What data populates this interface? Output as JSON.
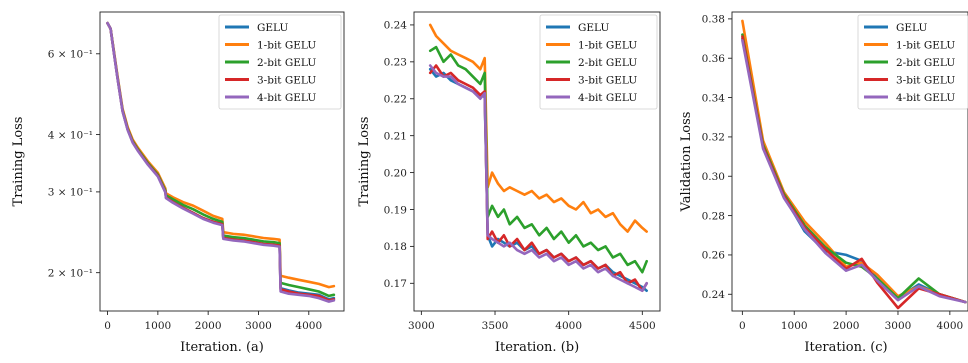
{
  "colors": {
    "GELU": "#1f77b4",
    "1-bit GELU": "#ff7f0e",
    "2-bit GELU": "#2ca02c",
    "3-bit GELU": "#d62728",
    "4-bit GELU": "#9467bd"
  },
  "chart_data": [
    {
      "type": "line",
      "xlabel": "Iteration. (a)",
      "ylabel": "Training Loss",
      "yscale": "log",
      "xlim": [
        -150,
        4700
      ],
      "ylim": [
        0.165,
        0.74
      ],
      "xticks": [
        0,
        1000,
        2000,
        3000,
        4000
      ],
      "xtick_labels": [
        "0",
        "1000",
        "2000",
        "3000",
        "4000"
      ],
      "yticks": [
        0.6,
        0.4,
        0.3,
        0.2
      ],
      "ytick_labels": [
        "6 × 10⁻¹",
        "4 × 10⁻¹",
        "3 × 10⁻¹",
        "2 × 10⁻¹"
      ],
      "legend": "top-right",
      "series": [
        {
          "name": "GELU",
          "x": [
            0,
            60,
            120,
            200,
            300,
            400,
            500,
            600,
            800,
            1000,
            1150,
            1160,
            1300,
            1500,
            1700,
            1900,
            2100,
            2280,
            2300,
            2500,
            2700,
            2900,
            3100,
            3300,
            3420,
            3440,
            3600,
            3800,
            4000,
            4200,
            4400,
            4500
          ],
          "y": [
            0.7,
            0.68,
            0.61,
            0.53,
            0.45,
            0.41,
            0.385,
            0.37,
            0.345,
            0.325,
            0.3,
            0.292,
            0.285,
            0.277,
            0.27,
            0.263,
            0.258,
            0.255,
            0.238,
            0.236,
            0.235,
            0.233,
            0.231,
            0.23,
            0.229,
            0.185,
            0.183,
            0.181,
            0.18,
            0.179,
            0.175,
            0.176
          ]
        },
        {
          "name": "1-bit GELU",
          "x": [
            0,
            60,
            120,
            200,
            300,
            400,
            500,
            600,
            800,
            1000,
            1150,
            1160,
            1300,
            1500,
            1700,
            1900,
            2100,
            2280,
            2300,
            2500,
            2700,
            2900,
            3100,
            3300,
            3420,
            3440,
            3600,
            3800,
            4000,
            4200,
            4400,
            4500
          ],
          "y": [
            0.7,
            0.68,
            0.615,
            0.535,
            0.455,
            0.415,
            0.39,
            0.375,
            0.35,
            0.33,
            0.305,
            0.298,
            0.292,
            0.285,
            0.28,
            0.273,
            0.266,
            0.262,
            0.245,
            0.243,
            0.242,
            0.24,
            0.238,
            0.237,
            0.236,
            0.197,
            0.195,
            0.193,
            0.191,
            0.189,
            0.186,
            0.187
          ]
        },
        {
          "name": "2-bit GELU",
          "x": [
            0,
            60,
            120,
            200,
            300,
            400,
            500,
            600,
            800,
            1000,
            1150,
            1160,
            1300,
            1500,
            1700,
            1900,
            2100,
            2280,
            2300,
            2500,
            2700,
            2900,
            3100,
            3300,
            3420,
            3440,
            3600,
            3800,
            4000,
            4200,
            4400,
            4500
          ],
          "y": [
            0.7,
            0.68,
            0.612,
            0.532,
            0.452,
            0.412,
            0.387,
            0.372,
            0.347,
            0.327,
            0.302,
            0.295,
            0.289,
            0.281,
            0.275,
            0.268,
            0.262,
            0.258,
            0.241,
            0.239,
            0.238,
            0.236,
            0.234,
            0.233,
            0.232,
            0.19,
            0.188,
            0.186,
            0.184,
            0.182,
            0.178,
            0.179
          ]
        },
        {
          "name": "3-bit GELU",
          "x": [
            0,
            60,
            120,
            200,
            300,
            400,
            500,
            600,
            800,
            1000,
            1150,
            1160,
            1300,
            1500,
            1700,
            1900,
            2100,
            2280,
            2300,
            2500,
            2700,
            2900,
            3100,
            3300,
            3420,
            3440,
            3600,
            3800,
            4000,
            4200,
            4400,
            4500
          ],
          "y": [
            0.7,
            0.68,
            0.61,
            0.53,
            0.45,
            0.41,
            0.385,
            0.37,
            0.345,
            0.325,
            0.3,
            0.292,
            0.285,
            0.277,
            0.27,
            0.263,
            0.258,
            0.255,
            0.238,
            0.236,
            0.235,
            0.233,
            0.231,
            0.23,
            0.229,
            0.184,
            0.182,
            0.18,
            0.179,
            0.178,
            0.174,
            0.175
          ]
        },
        {
          "name": "4-bit GELU",
          "x": [
            0,
            60,
            120,
            200,
            300,
            400,
            500,
            600,
            800,
            1000,
            1150,
            1160,
            1300,
            1500,
            1700,
            1900,
            2100,
            2280,
            2300,
            2500,
            2700,
            2900,
            3100,
            3300,
            3420,
            3440,
            3600,
            3800,
            4000,
            4200,
            4400,
            4500
          ],
          "y": [
            0.7,
            0.68,
            0.609,
            0.529,
            0.449,
            0.409,
            0.384,
            0.369,
            0.344,
            0.324,
            0.299,
            0.291,
            0.284,
            0.276,
            0.269,
            0.262,
            0.257,
            0.254,
            0.237,
            0.235,
            0.234,
            0.232,
            0.23,
            0.229,
            0.228,
            0.182,
            0.18,
            0.179,
            0.178,
            0.176,
            0.173,
            0.174
          ]
        }
      ]
    },
    {
      "type": "line",
      "xlabel": "Iteration. (b)",
      "ylabel": "Training Loss",
      "xlim": [
        2950,
        4620
      ],
      "ylim": [
        0.1625,
        0.2435
      ],
      "xticks": [
        3000,
        3500,
        4000,
        4500
      ],
      "xtick_labels": [
        "3000",
        "3500",
        "4000",
        "4500"
      ],
      "yticks": [
        0.17,
        0.18,
        0.19,
        0.2,
        0.21,
        0.22,
        0.23,
        0.24
      ],
      "ytick_labels": [
        "0.17",
        "0.18",
        "0.19",
        "0.20",
        "0.21",
        "0.22",
        "0.23",
        "0.24"
      ],
      "legend": "top-right",
      "series": [
        {
          "name": "GELU",
          "x": [
            3060,
            3100,
            3150,
            3200,
            3250,
            3300,
            3350,
            3400,
            3430,
            3450,
            3480,
            3520,
            3560,
            3600,
            3650,
            3700,
            3750,
            3800,
            3850,
            3900,
            3950,
            4000,
            4050,
            4100,
            4150,
            4200,
            4250,
            4300,
            4350,
            4400,
            4450,
            4500,
            4530
          ],
          "y": [
            0.228,
            0.226,
            0.227,
            0.225,
            0.224,
            0.223,
            0.222,
            0.221,
            0.2205,
            0.183,
            0.18,
            0.182,
            0.181,
            0.18,
            0.181,
            0.179,
            0.18,
            0.178,
            0.179,
            0.177,
            0.178,
            0.176,
            0.177,
            0.175,
            0.176,
            0.174,
            0.175,
            0.173,
            0.172,
            0.171,
            0.17,
            0.169,
            0.168
          ]
        },
        {
          "name": "1-bit GELU",
          "x": [
            3060,
            3100,
            3150,
            3200,
            3250,
            3300,
            3350,
            3400,
            3430,
            3450,
            3480,
            3520,
            3560,
            3600,
            3650,
            3700,
            3750,
            3800,
            3850,
            3900,
            3950,
            4000,
            4050,
            4100,
            4150,
            4200,
            4250,
            4300,
            4350,
            4400,
            4450,
            4500,
            4530
          ],
          "y": [
            0.24,
            0.237,
            0.235,
            0.233,
            0.232,
            0.231,
            0.23,
            0.228,
            0.231,
            0.196,
            0.2,
            0.197,
            0.195,
            0.196,
            0.195,
            0.194,
            0.195,
            0.193,
            0.194,
            0.192,
            0.193,
            0.191,
            0.19,
            0.192,
            0.189,
            0.19,
            0.188,
            0.189,
            0.186,
            0.184,
            0.187,
            0.185,
            0.184
          ]
        },
        {
          "name": "2-bit GELU",
          "x": [
            3060,
            3100,
            3150,
            3200,
            3250,
            3300,
            3350,
            3400,
            3430,
            3450,
            3480,
            3520,
            3560,
            3600,
            3650,
            3700,
            3750,
            3800,
            3850,
            3900,
            3950,
            4000,
            4050,
            4100,
            4150,
            4200,
            4250,
            4300,
            4350,
            4400,
            4450,
            4500,
            4530
          ],
          "y": [
            0.233,
            0.234,
            0.23,
            0.232,
            0.229,
            0.228,
            0.226,
            0.224,
            0.227,
            0.188,
            0.191,
            0.188,
            0.19,
            0.186,
            0.188,
            0.185,
            0.186,
            0.183,
            0.185,
            0.182,
            0.184,
            0.181,
            0.183,
            0.18,
            0.181,
            0.179,
            0.18,
            0.177,
            0.178,
            0.175,
            0.176,
            0.173,
            0.176
          ]
        },
        {
          "name": "3-bit GELU",
          "x": [
            3060,
            3100,
            3150,
            3200,
            3250,
            3300,
            3350,
            3400,
            3430,
            3450,
            3480,
            3520,
            3560,
            3600,
            3650,
            3700,
            3750,
            3800,
            3850,
            3900,
            3950,
            4000,
            4050,
            4100,
            4150,
            4200,
            4250,
            4300,
            4350,
            4400,
            4450,
            4500,
            4530
          ],
          "y": [
            0.227,
            0.229,
            0.226,
            0.227,
            0.225,
            0.224,
            0.223,
            0.221,
            0.222,
            0.182,
            0.184,
            0.181,
            0.183,
            0.18,
            0.182,
            0.179,
            0.181,
            0.178,
            0.179,
            0.177,
            0.178,
            0.176,
            0.177,
            0.175,
            0.176,
            0.174,
            0.175,
            0.172,
            0.173,
            0.17,
            0.171,
            0.168,
            0.17
          ]
        },
        {
          "name": "4-bit GELU",
          "x": [
            3060,
            3100,
            3150,
            3200,
            3250,
            3300,
            3350,
            3400,
            3430,
            3450,
            3480,
            3520,
            3560,
            3600,
            3650,
            3700,
            3750,
            3800,
            3850,
            3900,
            3950,
            4000,
            4050,
            4100,
            4150,
            4200,
            4250,
            4300,
            4350,
            4400,
            4450,
            4500,
            4530
          ],
          "y": [
            0.229,
            0.227,
            0.226,
            0.226,
            0.224,
            0.223,
            0.222,
            0.22,
            0.2215,
            0.183,
            0.182,
            0.181,
            0.18,
            0.181,
            0.179,
            0.178,
            0.179,
            0.177,
            0.178,
            0.176,
            0.177,
            0.175,
            0.176,
            0.174,
            0.175,
            0.173,
            0.174,
            0.172,
            0.171,
            0.17,
            0.169,
            0.168,
            0.17
          ]
        }
      ]
    },
    {
      "type": "line",
      "xlabel": "Iteration. (c)",
      "ylabel": "Validation Loss",
      "xlim": [
        -200,
        4350
      ],
      "ylim": [
        0.2315,
        0.3835
      ],
      "xticks": [
        0,
        1000,
        2000,
        3000,
        4000
      ],
      "xtick_labels": [
        "0",
        "1000",
        "2000",
        "3000",
        "4000"
      ],
      "yticks": [
        0.24,
        0.26,
        0.28,
        0.3,
        0.32,
        0.34,
        0.36,
        0.38
      ],
      "ytick_labels": [
        "0.24",
        "0.26",
        "0.28",
        "0.30",
        "0.32",
        "0.34",
        "0.36",
        "0.38"
      ],
      "legend": "top-right",
      "series": [
        {
          "name": "GELU",
          "x": [
            0,
            400,
            800,
            1200,
            1600,
            2000,
            2300,
            2600,
            3000,
            3400,
            3800,
            4300
          ],
          "y": [
            0.37,
            0.315,
            0.29,
            0.272,
            0.262,
            0.26,
            0.257,
            0.248,
            0.238,
            0.245,
            0.24,
            0.236
          ]
        },
        {
          "name": "1-bit GELU",
          "x": [
            0,
            400,
            800,
            1200,
            1600,
            2000,
            2300,
            2600,
            3000,
            3400,
            3800,
            4300
          ],
          "y": [
            0.379,
            0.318,
            0.292,
            0.277,
            0.266,
            0.254,
            0.256,
            0.25,
            0.239,
            0.244,
            0.24,
            0.236
          ]
        },
        {
          "name": "2-bit GELU",
          "x": [
            0,
            400,
            800,
            1200,
            1600,
            2000,
            2300,
            2600,
            3000,
            3400,
            3800,
            4300
          ],
          "y": [
            0.372,
            0.316,
            0.291,
            0.275,
            0.264,
            0.256,
            0.254,
            0.248,
            0.238,
            0.248,
            0.24,
            0.236
          ]
        },
        {
          "name": "3-bit GELU",
          "x": [
            0,
            400,
            800,
            1200,
            1600,
            2000,
            2300,
            2600,
            3000,
            3400,
            3800,
            4300
          ],
          "y": [
            0.371,
            0.315,
            0.29,
            0.274,
            0.263,
            0.253,
            0.258,
            0.246,
            0.233,
            0.243,
            0.24,
            0.236
          ]
        },
        {
          "name": "4-bit GELU",
          "x": [
            0,
            400,
            800,
            1200,
            1600,
            2000,
            2300,
            2600,
            3000,
            3400,
            3800,
            4300
          ],
          "y": [
            0.369,
            0.314,
            0.289,
            0.273,
            0.261,
            0.252,
            0.255,
            0.247,
            0.237,
            0.244,
            0.239,
            0.236
          ]
        }
      ]
    }
  ]
}
